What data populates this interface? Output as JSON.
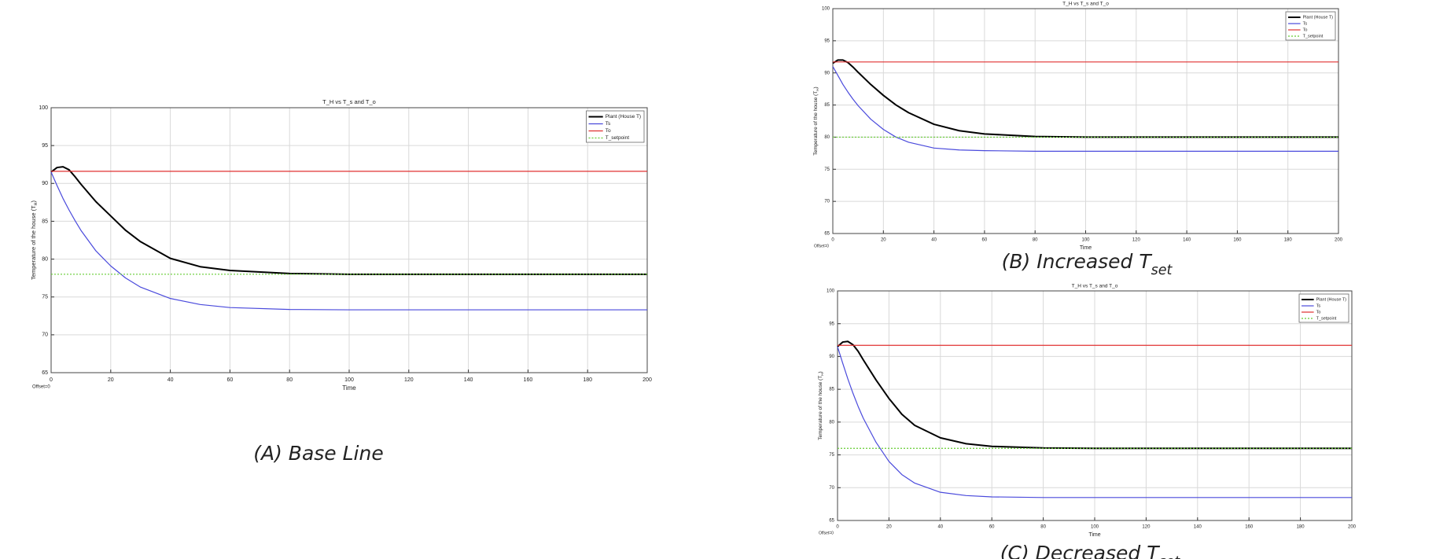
{
  "chart_data": [
    {
      "type": "line",
      "title": "T_H vs T_s and T_o",
      "xlabel": "Time",
      "ylabel": [
        "Temperature of the house (T",
        "H",
        ")"
      ],
      "note": "Offset=0",
      "caption": [
        "(A) Base Line"
      ],
      "x": [
        0,
        2,
        4,
        6,
        8,
        10,
        15,
        20,
        25,
        30,
        40,
        50,
        60,
        80,
        100,
        120,
        140,
        160,
        180,
        200
      ],
      "xlim": [
        0,
        200
      ],
      "xticks": [
        0,
        20,
        40,
        60,
        80,
        100,
        120,
        140,
        160,
        180,
        200
      ],
      "ylim": [
        65,
        100
      ],
      "yticks": [
        65,
        70,
        75,
        80,
        85,
        90,
        95,
        100
      ],
      "grid": true,
      "legend": "top-right",
      "series": [
        {
          "name": "Plant (House T)",
          "color": "#000000",
          "style": "solid",
          "values": [
            91.5,
            92.1,
            92.2,
            91.8,
            90.9,
            89.9,
            87.6,
            85.7,
            83.8,
            82.3,
            80.1,
            79.0,
            78.5,
            78.1,
            78.0,
            78.0,
            78.0,
            78.0,
            78.0,
            78.0
          ]
        },
        {
          "name": "Ts",
          "color": "#4a4adc",
          "style": "solid",
          "values": [
            91.5,
            89.7,
            88.0,
            86.5,
            85.1,
            83.8,
            81.1,
            79.1,
            77.5,
            76.3,
            74.8,
            74.0,
            73.6,
            73.35,
            73.3,
            73.3,
            73.3,
            73.3,
            73.3,
            73.3
          ]
        },
        {
          "name": "To",
          "color": "#e03030",
          "style": "solid",
          "values": [
            91.6,
            91.6,
            91.6,
            91.6,
            91.6,
            91.6,
            91.6,
            91.6,
            91.6,
            91.6,
            91.6,
            91.6,
            91.6,
            91.6,
            91.6,
            91.6,
            91.6,
            91.6,
            91.6,
            91.6
          ]
        },
        {
          "name": "T_setpoint",
          "color": "#66cc33",
          "style": "dotted",
          "values": [
            78,
            78,
            78,
            78,
            78,
            78,
            78,
            78,
            78,
            78,
            78,
            78,
            78,
            78,
            78,
            78,
            78,
            78,
            78,
            78
          ]
        }
      ]
    },
    {
      "type": "line",
      "title": "T_H vs T_s and T_o",
      "xlabel": "Time",
      "ylabel": [
        "Temperature of the house (T",
        "H",
        ")"
      ],
      "note": "Offset=0",
      "caption": [
        "(B) Increased T",
        "set"
      ],
      "x": [
        0,
        2,
        4,
        6,
        8,
        10,
        15,
        20,
        25,
        30,
        40,
        50,
        60,
        80,
        100,
        120,
        140,
        160,
        180,
        200
      ],
      "xlim": [
        0,
        200
      ],
      "xticks": [
        0,
        20,
        40,
        60,
        80,
        100,
        120,
        140,
        160,
        180,
        200
      ],
      "ylim": [
        65,
        100
      ],
      "yticks": [
        65,
        70,
        75,
        80,
        85,
        90,
        95,
        100
      ],
      "grid": true,
      "legend": "top-right",
      "series": [
        {
          "name": "Plant (House T)",
          "color": "#000000",
          "style": "solid",
          "values": [
            91.5,
            92.0,
            92.0,
            91.6,
            90.9,
            90.1,
            88.2,
            86.5,
            85.0,
            83.8,
            82.0,
            81.0,
            80.5,
            80.1,
            80.0,
            80.0,
            80.0,
            80.0,
            80.0,
            80.0
          ]
        },
        {
          "name": "Ts",
          "color": "#4a4adc",
          "style": "solid",
          "values": [
            91.0,
            89.6,
            88.2,
            87.0,
            85.9,
            84.9,
            82.8,
            81.2,
            80.0,
            79.2,
            78.3,
            78.0,
            77.9,
            77.8,
            77.8,
            77.8,
            77.8,
            77.8,
            77.8,
            77.8
          ]
        },
        {
          "name": "To",
          "color": "#e03030",
          "style": "solid",
          "values": [
            91.7,
            91.7,
            91.7,
            91.7,
            91.7,
            91.7,
            91.7,
            91.7,
            91.7,
            91.7,
            91.7,
            91.7,
            91.7,
            91.7,
            91.7,
            91.7,
            91.7,
            91.7,
            91.7,
            91.7
          ]
        },
        {
          "name": "T_setpoint",
          "color": "#66cc33",
          "style": "dotted",
          "values": [
            80,
            80,
            80,
            80,
            80,
            80,
            80,
            80,
            80,
            80,
            80,
            80,
            80,
            80,
            80,
            80,
            80,
            80,
            80,
            80
          ]
        }
      ]
    },
    {
      "type": "line",
      "title": "T_H vs T_s and T_o",
      "xlabel": "Time",
      "ylabel": [
        "Temperature of the house (T",
        "H",
        ")"
      ],
      "note": "Offset=0",
      "caption": [
        "(C) Decreased T",
        "set"
      ],
      "x": [
        0,
        2,
        4,
        6,
        8,
        10,
        15,
        20,
        25,
        30,
        40,
        50,
        60,
        80,
        100,
        120,
        140,
        160,
        180,
        200
      ],
      "xlim": [
        0,
        200
      ],
      "xticks": [
        0,
        20,
        40,
        60,
        80,
        100,
        120,
        140,
        160,
        180,
        200
      ],
      "ylim": [
        65,
        100
      ],
      "yticks": [
        65,
        70,
        75,
        80,
        85,
        90,
        95,
        100
      ],
      "grid": true,
      "legend": "top-right",
      "series": [
        {
          "name": "Plant (House T)",
          "color": "#000000",
          "style": "solid",
          "values": [
            91.5,
            92.2,
            92.3,
            91.8,
            90.8,
            89.5,
            86.4,
            83.6,
            81.2,
            79.5,
            77.6,
            76.7,
            76.3,
            76.05,
            76.0,
            76.0,
            76.0,
            76.0,
            76.0,
            76.0
          ]
        },
        {
          "name": "Ts",
          "color": "#4a4adc",
          "style": "solid",
          "values": [
            91.5,
            89.0,
            86.6,
            84.4,
            82.4,
            80.6,
            76.9,
            74.0,
            72.0,
            70.7,
            69.3,
            68.8,
            68.6,
            68.5,
            68.5,
            68.5,
            68.5,
            68.5,
            68.5,
            68.5
          ]
        },
        {
          "name": "To",
          "color": "#e03030",
          "style": "solid",
          "values": [
            91.7,
            91.7,
            91.7,
            91.7,
            91.7,
            91.7,
            91.7,
            91.7,
            91.7,
            91.7,
            91.7,
            91.7,
            91.7,
            91.7,
            91.7,
            91.7,
            91.7,
            91.7,
            91.7,
            91.7
          ]
        },
        {
          "name": "T_setpoint",
          "color": "#66cc33",
          "style": "dotted",
          "values": [
            76,
            76,
            76,
            76,
            76,
            76,
            76,
            76,
            76,
            76,
            76,
            76,
            76,
            76,
            76,
            76,
            76,
            76,
            76,
            76
          ]
        }
      ]
    }
  ]
}
